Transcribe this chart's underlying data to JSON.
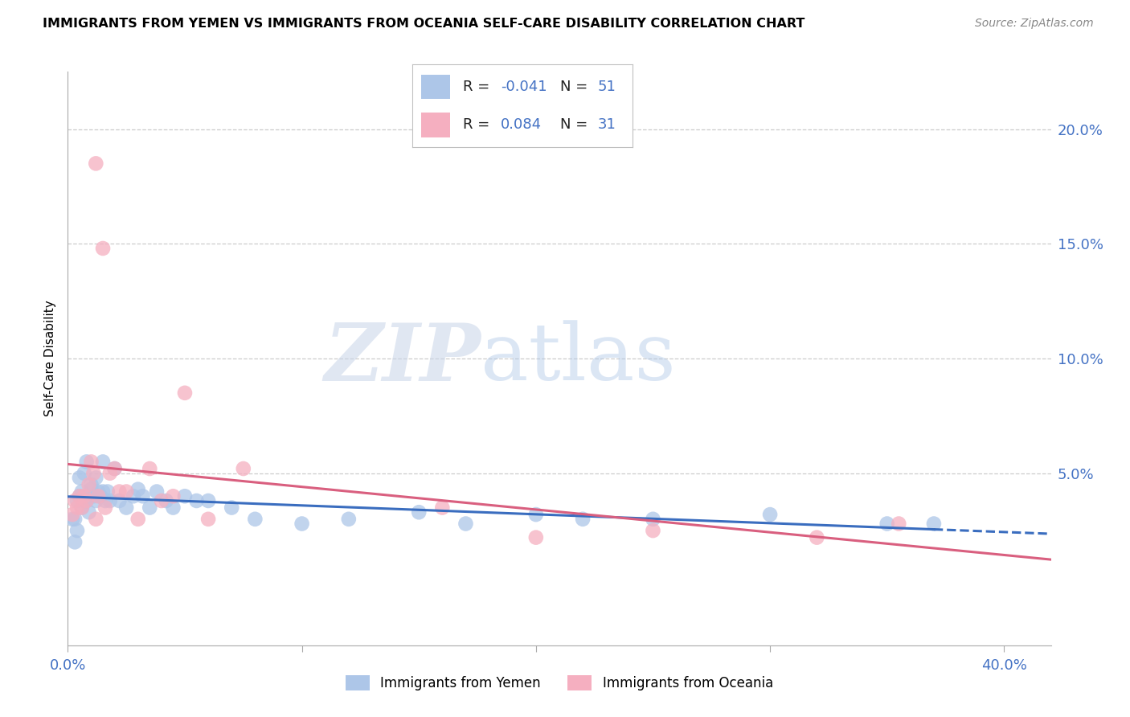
{
  "title": "IMMIGRANTS FROM YEMEN VS IMMIGRANTS FROM OCEANIA SELF-CARE DISABILITY CORRELATION CHART",
  "source": "Source: ZipAtlas.com",
  "ylabel": "Self-Care Disability",
  "ytick_labels": [
    "20.0%",
    "15.0%",
    "10.0%",
    "5.0%"
  ],
  "ytick_values": [
    0.2,
    0.15,
    0.1,
    0.05
  ],
  "xlim": [
    0.0,
    0.42
  ],
  "ylim": [
    -0.025,
    0.225
  ],
  "color_yemen": "#adc6e8",
  "color_oceania": "#f5afc0",
  "line_color_yemen": "#3a6dbf",
  "line_color_oceania": "#d95f7f",
  "watermark_zip": "ZIP",
  "watermark_atlas": "atlas",
  "legend_r1_label": "R = ",
  "legend_r1_val": "-0.041",
  "legend_n1_label": "  N = ",
  "legend_n1_val": "51",
  "legend_r2_label": "R =  ",
  "legend_r2_val": "0.084",
  "legend_n2_label": "  N = ",
  "legend_n2_val": "31",
  "bottom_label1": "Immigrants from Yemen",
  "bottom_label2": "Immigrants from Oceania",
  "yemen_x": [
    0.002,
    0.003,
    0.003,
    0.004,
    0.004,
    0.005,
    0.005,
    0.006,
    0.006,
    0.007,
    0.007,
    0.008,
    0.008,
    0.009,
    0.01,
    0.01,
    0.011,
    0.012,
    0.012,
    0.013,
    0.014,
    0.015,
    0.015,
    0.016,
    0.017,
    0.018,
    0.02,
    0.022,
    0.025,
    0.028,
    0.03,
    0.032,
    0.035,
    0.038,
    0.042,
    0.045,
    0.05,
    0.055,
    0.06,
    0.07,
    0.08,
    0.1,
    0.12,
    0.15,
    0.17,
    0.2,
    0.22,
    0.25,
    0.3,
    0.35,
    0.37
  ],
  "yemen_y": [
    0.03,
    0.03,
    0.02,
    0.038,
    0.025,
    0.048,
    0.04,
    0.042,
    0.035,
    0.05,
    0.038,
    0.055,
    0.038,
    0.033,
    0.043,
    0.045,
    0.04,
    0.048,
    0.038,
    0.042,
    0.04,
    0.055,
    0.042,
    0.038,
    0.042,
    0.038,
    0.052,
    0.038,
    0.035,
    0.04,
    0.043,
    0.04,
    0.035,
    0.042,
    0.038,
    0.035,
    0.04,
    0.038,
    0.038,
    0.035,
    0.03,
    0.028,
    0.03,
    0.033,
    0.028,
    0.032,
    0.03,
    0.03,
    0.032,
    0.028,
    0.028
  ],
  "oceania_x": [
    0.002,
    0.003,
    0.004,
    0.005,
    0.006,
    0.007,
    0.008,
    0.009,
    0.01,
    0.011,
    0.012,
    0.013,
    0.015,
    0.016,
    0.018,
    0.02,
    0.022,
    0.025,
    0.03,
    0.035,
    0.04,
    0.045,
    0.05,
    0.06,
    0.075,
    0.16,
    0.2,
    0.25,
    0.32,
    0.355,
    0.012
  ],
  "oceania_y": [
    0.032,
    0.038,
    0.035,
    0.04,
    0.035,
    0.04,
    0.038,
    0.045,
    0.055,
    0.05,
    0.185,
    0.04,
    0.148,
    0.035,
    0.05,
    0.052,
    0.042,
    0.042,
    0.03,
    0.052,
    0.038,
    0.04,
    0.085,
    0.03,
    0.052,
    0.035,
    0.022,
    0.025,
    0.022,
    0.028,
    0.03
  ]
}
